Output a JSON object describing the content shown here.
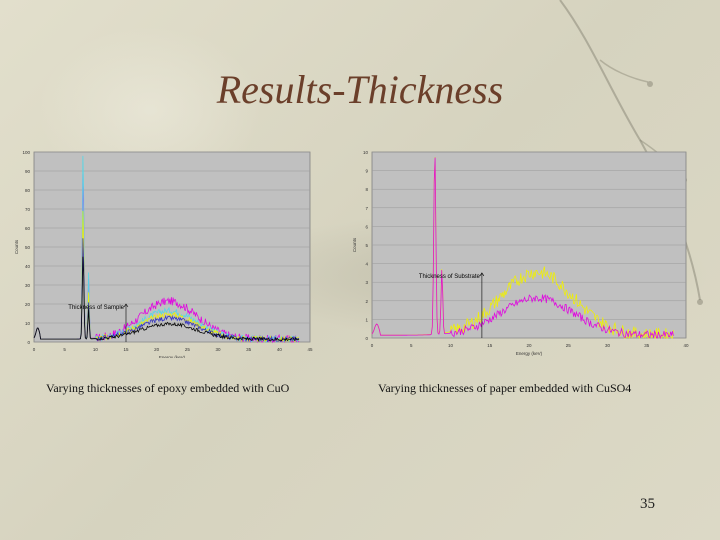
{
  "slide": {
    "title": "Results-Thickness",
    "caption_left": "Varying thicknesses of epoxy embedded with CuO",
    "caption_right": "Varying thicknesses of paper embedded with CuSO4",
    "page_number": "35"
  },
  "colors": {
    "plot_bg": "#c0c0c0",
    "magenta": "#e000e0",
    "yellow": "#f0f000",
    "cyan": "#50d8e8",
    "black": "#000000",
    "blue": "#3030c0",
    "red": "#d03030",
    "green": "#30a030",
    "title": "#6b3f2a"
  },
  "chart_data": [
    {
      "type": "line",
      "xlabel": "Energy (keV)",
      "ylabel": "Counts",
      "xlim": [
        0,
        45
      ],
      "ylim": [
        0,
        100
      ],
      "x_ticks": [
        "0",
        "5",
        "10",
        "15",
        "20",
        "25",
        "30",
        "35",
        "40",
        "45"
      ],
      "y_ticks": [
        "0",
        "10",
        "20",
        "30",
        "40",
        "50",
        "60",
        "70",
        "80",
        "90",
        "100"
      ],
      "annotation": "Thickness of Sample",
      "annotation_arrow": {
        "x": 15,
        "from": 0,
        "to": 20
      },
      "series": [
        {
          "color": "magenta",
          "peak_x": 8.0,
          "peak_y": 90,
          "hump_center": 22,
          "hump_height": 20
        },
        {
          "color": "cyan",
          "peak_x": 8.0,
          "peak_y": 100,
          "hump_center": 22,
          "hump_height": 15
        },
        {
          "color": "yellow",
          "peak_x": 8.0,
          "peak_y": 70,
          "hump_center": 22,
          "hump_height": 13
        },
        {
          "color": "blue",
          "peak_x": 8.0,
          "peak_y": 55,
          "hump_center": 22,
          "hump_height": 11
        },
        {
          "color": "black",
          "peak_x": 8.0,
          "peak_y": 45,
          "hump_center": 22,
          "hump_height": 8
        }
      ]
    },
    {
      "type": "line",
      "xlabel": "Energy (keV)",
      "ylabel": "Counts",
      "xlim": [
        0,
        40
      ],
      "ylim": [
        0,
        10
      ],
      "x_ticks": [
        "0",
        "5",
        "10",
        "15",
        "20",
        "25",
        "30",
        "35",
        "40"
      ],
      "y_ticks": [
        "0",
        "1",
        "2",
        "3",
        "4",
        "5",
        "6",
        "7",
        "8",
        "9",
        "10"
      ],
      "annotation": "Thickness of Substrate",
      "annotation_arrow": {
        "x": 14,
        "from": 0,
        "to": 3.5
      },
      "series": [
        {
          "color": "yellow",
          "peak_x": 8.0,
          "peak_y": 10,
          "hump_center": 21,
          "hump_height": 3.4
        },
        {
          "color": "magenta",
          "peak_x": 8.0,
          "peak_y": 10,
          "hump_center": 21,
          "hump_height": 2.0
        }
      ]
    }
  ]
}
